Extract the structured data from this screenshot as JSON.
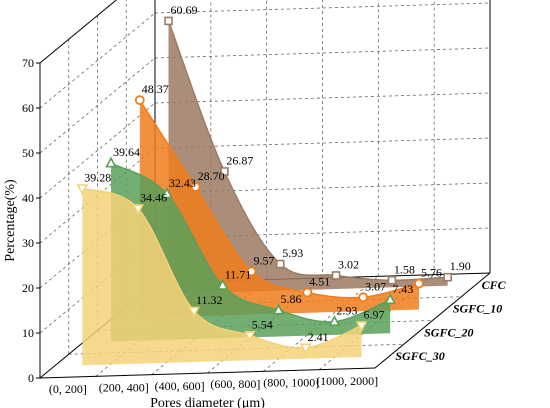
{
  "chart_data": {
    "type": "area",
    "title": "",
    "xlabel": "Pores diameter (μm)",
    "ylabel": "Percentage(%)",
    "ylim": [
      0,
      70
    ],
    "yticks": [
      "0",
      "10",
      "20",
      "30",
      "40",
      "50",
      "60",
      "70"
    ],
    "categories": [
      "(0, 200]",
      "(200, 400]",
      "(400, 600]",
      "(600, 800]",
      "(800, 1000]",
      "(1000, 2000]"
    ],
    "grid": true,
    "series": [
      {
        "name": "CFC",
        "values": [
          60.69,
          26.87,
          5.93,
          3.02,
          1.58,
          1.9
        ],
        "labels": [
          "60.69",
          "26.87",
          "5.93",
          "3.02",
          "1.58",
          "1.90"
        ],
        "color": "#9c7a63",
        "marker": "square"
      },
      {
        "name": "SGFC_10",
        "values": [
          48.37,
          28.7,
          9.57,
          4.51,
          3.07,
          5.76
        ],
        "labels": [
          "48.37",
          "28.70",
          "9.57",
          "4.51",
          "3.07",
          "5.76"
        ],
        "color": "#f07c1c",
        "marker": "circle"
      },
      {
        "name": "SGFC_20",
        "values": [
          39.64,
          32.43,
          11.71,
          5.86,
          2.93,
          7.43
        ],
        "labels": [
          "39.64",
          "32.43",
          "11.71",
          "5.86",
          "2.93",
          "7.43"
        ],
        "color": "#5aa05a",
        "marker": "triangle-up"
      },
      {
        "name": "SGFC_30",
        "values": [
          39.28,
          34.46,
          11.32,
          5.54,
          2.41,
          6.97
        ],
        "labels": [
          "39.28",
          "34.46",
          "11.32",
          "5.54",
          "2.41",
          "6.97"
        ],
        "color": "#f5d278",
        "marker": "triangle-down"
      }
    ]
  }
}
